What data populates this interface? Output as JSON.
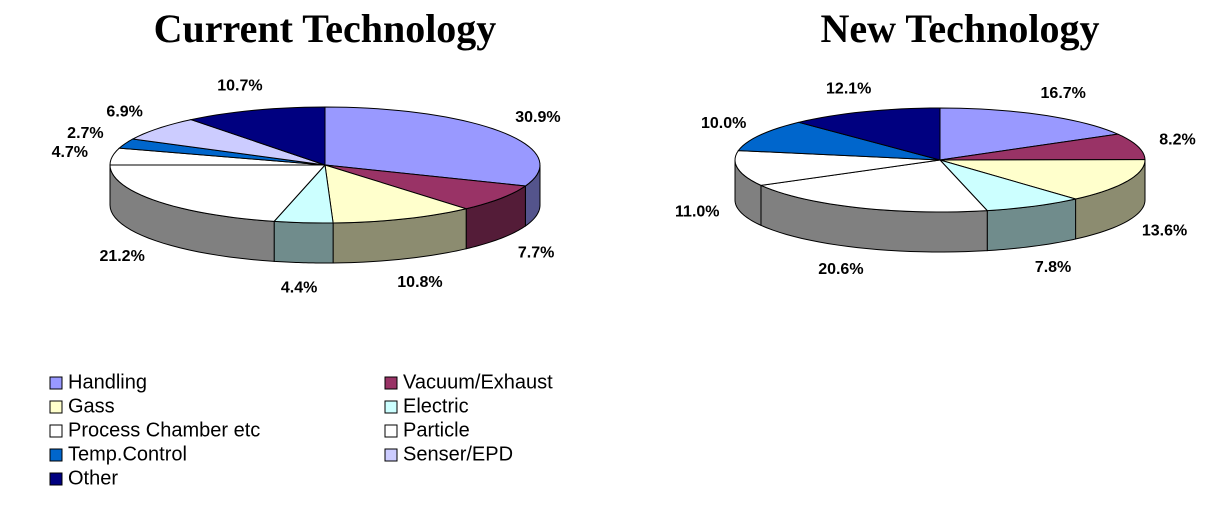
{
  "chart_data": [
    {
      "type": "pie",
      "title": "Current Technology",
      "categories": [
        "Handling",
        "Vacuum/Exhaust",
        "Gass",
        "Electric",
        "Process Chamber  etc",
        "Particle",
        "Temp.Control",
        "Senser/EPD",
        "Other"
      ],
      "values": [
        30.9,
        7.7,
        10.8,
        4.4,
        21.2,
        4.7,
        2.7,
        6.9,
        10.7
      ],
      "value_labels": [
        "30.9%",
        "7.7%",
        "10.8%",
        "4.4%",
        "21.2%",
        "4.7%",
        "2.7%",
        "6.9%",
        "10.7%"
      ],
      "colors": [
        "#9999ff",
        "#993366",
        "#ffffcc",
        "#ccffff",
        "#ffffff",
        "#ffffff",
        "#0066cc",
        "#ccccff",
        "#000080"
      ]
    },
    {
      "type": "pie",
      "title": "New Technology",
      "categories": [
        "Handling",
        "Vacuum/Exhaust",
        "Gass",
        "Electric",
        "Process Chamber  etc",
        "Particle",
        "Temp.Control",
        "Other"
      ],
      "values": [
        16.7,
        8.2,
        13.6,
        7.8,
        20.6,
        11.0,
        10.0,
        12.1
      ],
      "value_labels": [
        "16.7%",
        "8.2%",
        "13.6%",
        "7.8%",
        "20.6%",
        "11.0%",
        "10.0%",
        "12.1%"
      ],
      "colors": [
        "#9999ff",
        "#993366",
        "#ffffcc",
        "#ccffff",
        "#ffffff",
        "#ffffff",
        "#0066cc",
        "#000080"
      ]
    }
  ]
}
